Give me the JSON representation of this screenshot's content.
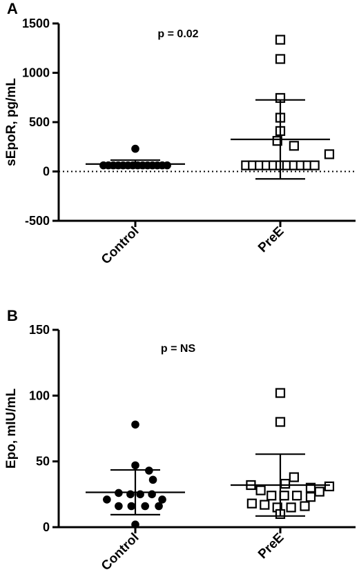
{
  "chart_data": [
    {
      "type": "scatter",
      "panel_label": "A",
      "title": "",
      "xlabel": "",
      "ylabel": "sEpoR, pg/mL",
      "ylim": [
        -500,
        1500
      ],
      "yticks": [
        -500,
        0,
        500,
        1000,
        1500
      ],
      "ytick_labels": [
        "-500",
        "0",
        "500",
        "1000",
        "1500"
      ],
      "categories": [
        "Control",
        "PreE"
      ],
      "annotation": "p = 0.02",
      "reference_line": 0,
      "grid": false,
      "series": [
        {
          "category": "Control",
          "marker": "filled-circle",
          "points": [
            {
              "dx": -0.65,
              "y": 62
            },
            {
              "dx": -0.55,
              "y": 62
            },
            {
              "dx": -0.45,
              "y": 62
            },
            {
              "dx": -0.35,
              "y": 62
            },
            {
              "dx": -0.25,
              "y": 62
            },
            {
              "dx": -0.15,
              "y": 62
            },
            {
              "dx": -0.05,
              "y": 62
            },
            {
              "dx": 0.05,
              "y": 62
            },
            {
              "dx": 0.15,
              "y": 62
            },
            {
              "dx": 0.25,
              "y": 62
            },
            {
              "dx": 0.35,
              "y": 62
            },
            {
              "dx": 0.45,
              "y": 62
            },
            {
              "dx": 0.55,
              "y": 62
            },
            {
              "dx": 0.65,
              "y": 62
            },
            {
              "dx": 0,
              "y": 230
            }
          ],
          "mean": 75,
          "sd_upper": 115,
          "sd_lower": 35
        },
        {
          "category": "PreE",
          "marker": "open-square",
          "points": [
            {
              "dx": -0.7,
              "y": 62
            },
            {
              "dx": -0.56,
              "y": 62
            },
            {
              "dx": -0.42,
              "y": 62
            },
            {
              "dx": -0.28,
              "y": 62
            },
            {
              "dx": -0.14,
              "y": 62
            },
            {
              "dx": 0,
              "y": 62
            },
            {
              "dx": 0.14,
              "y": 62
            },
            {
              "dx": 0.28,
              "y": 62
            },
            {
              "dx": 0.42,
              "y": 62
            },
            {
              "dx": 0.56,
              "y": 62
            },
            {
              "dx": 0.7,
              "y": 62
            },
            {
              "dx": 1.0,
              "y": 175
            },
            {
              "dx": 0.28,
              "y": 260
            },
            {
              "dx": -0.06,
              "y": 310
            },
            {
              "dx": 0,
              "y": 410
            },
            {
              "dx": 0,
              "y": 545
            },
            {
              "dx": 0,
              "y": 745
            },
            {
              "dx": 0,
              "y": 1140
            },
            {
              "dx": 0,
              "y": 1335
            }
          ],
          "mean": 325,
          "sd_upper": 725,
          "sd_lower": -75
        }
      ]
    },
    {
      "type": "scatter",
      "panel_label": "B",
      "title": "",
      "xlabel": "",
      "ylabel": "Epo, mIU/mL",
      "ylim": [
        0,
        150
      ],
      "yticks": [
        0,
        50,
        100,
        150
      ],
      "ytick_labels": [
        "0",
        "50",
        "100",
        "150"
      ],
      "categories": [
        "Control",
        "PreE"
      ],
      "annotation": "p = NS",
      "grid": false,
      "series": [
        {
          "category": "Control",
          "marker": "filled-circle",
          "points": [
            {
              "dx": 0,
              "y": 78
            },
            {
              "dx": 0,
              "y": 47
            },
            {
              "dx": 0.28,
              "y": 43
            },
            {
              "dx": 0.36,
              "y": 36
            },
            {
              "dx": -0.34,
              "y": 26
            },
            {
              "dx": -0.1,
              "y": 25
            },
            {
              "dx": 0.1,
              "y": 25
            },
            {
              "dx": 0.34,
              "y": 25
            },
            {
              "dx": -0.58,
              "y": 21
            },
            {
              "dx": 0.55,
              "y": 21
            },
            {
              "dx": -0.34,
              "y": 16
            },
            {
              "dx": -0.08,
              "y": 16
            },
            {
              "dx": 0.2,
              "y": 16
            },
            {
              "dx": 0.48,
              "y": 16
            },
            {
              "dx": 0,
              "y": 2
            }
          ],
          "mean": 26.5,
          "sd_upper": 43.5,
          "sd_lower": 9.5
        },
        {
          "category": "PreE",
          "marker": "open-square",
          "points": [
            {
              "dx": 0,
              "y": 102
            },
            {
              "dx": 0,
              "y": 80
            },
            {
              "dx": 0.28,
              "y": 38
            },
            {
              "dx": -0.6,
              "y": 32
            },
            {
              "dx": 0.1,
              "y": 33
            },
            {
              "dx": 1.0,
              "y": 31
            },
            {
              "dx": 0.62,
              "y": 30
            },
            {
              "dx": -0.4,
              "y": 28
            },
            {
              "dx": 0.8,
              "y": 27
            },
            {
              "dx": -0.18,
              "y": 24
            },
            {
              "dx": 0.08,
              "y": 24
            },
            {
              "dx": 0.34,
              "y": 24
            },
            {
              "dx": 0.62,
              "y": 23
            },
            {
              "dx": -0.32,
              "y": 17
            },
            {
              "dx": -0.06,
              "y": 15
            },
            {
              "dx": 0.22,
              "y": 15
            },
            {
              "dx": 0.5,
              "y": 16
            },
            {
              "dx": -0.58,
              "y": 18
            },
            {
              "dx": 0,
              "y": 10
            }
          ],
          "mean": 32,
          "sd_upper": 55.5,
          "sd_lower": 8.5
        }
      ]
    }
  ]
}
